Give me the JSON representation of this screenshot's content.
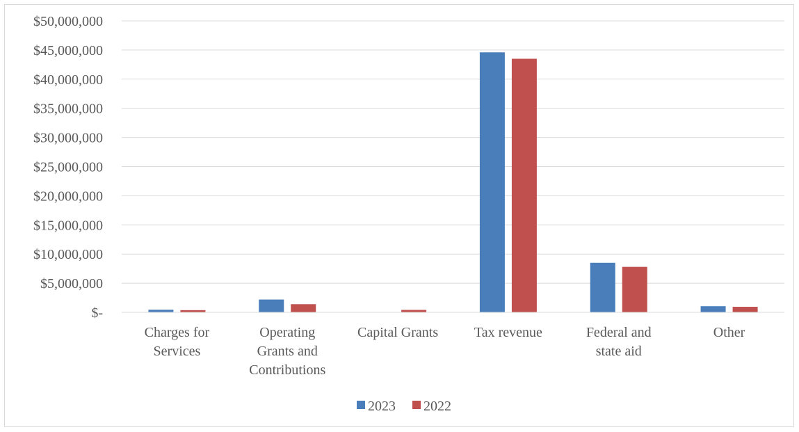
{
  "chart_data": {
    "type": "bar",
    "categories": [
      [
        "Charges for",
        "Services"
      ],
      [
        "Operating",
        "Grants and",
        "Contributions"
      ],
      [
        "Capital Grants"
      ],
      [
        "Tax revenue"
      ],
      [
        "Federal and",
        "state aid"
      ],
      [
        "Other"
      ]
    ],
    "series": [
      {
        "name": "2023",
        "color": "#4a7ebb",
        "values": [
          450000,
          2200000,
          0,
          44600000,
          8500000,
          1050000
        ]
      },
      {
        "name": "2022",
        "color": "#c0504d",
        "values": [
          380000,
          1400000,
          420000,
          43500000,
          7800000,
          950000
        ]
      }
    ],
    "ylim": [
      0,
      50000000
    ],
    "ytick_step": 5000000,
    "ytick_labels": [
      "$-",
      "$5,000,000",
      "$10,000,000",
      "$15,000,000",
      "$20,000,000",
      "$25,000,000",
      "$30,000,000",
      "$35,000,000",
      "$40,000,000",
      "$45,000,000",
      "$50,000,000"
    ],
    "grid": true,
    "legend_position": "bottom"
  }
}
